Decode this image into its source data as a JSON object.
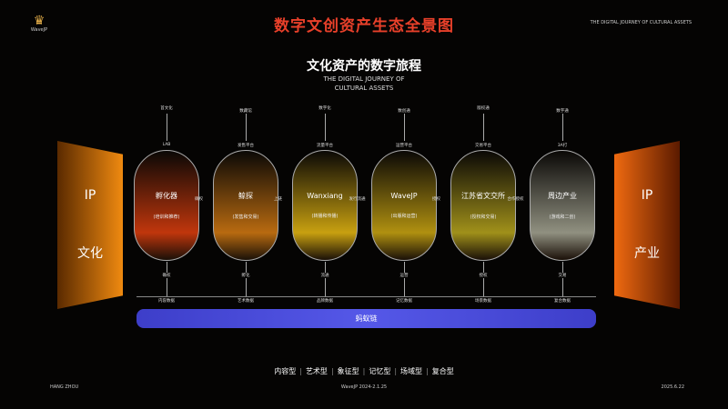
{
  "header": {
    "title": "数字文创资产生态全景图",
    "logo_text": "WaveJP",
    "top_right": "THE DIGITAL JOURNEY OF CULTURAL ASSETS"
  },
  "main": {
    "subtitle": "文化资产的数字旅程",
    "subtitle_en_1": "THE DIGITAL JOURNEY OF",
    "subtitle_en_2": "CULTURAL ASSETS"
  },
  "left_panel": {
    "line1": "IP",
    "line2": "文化"
  },
  "right_panel": {
    "line1": "IP",
    "line2": "产业"
  },
  "stages": [
    {
      "name": "孵化器",
      "sub": "(培训和推荐)",
      "top_label": "首文化",
      "top_node": "LAB",
      "bottom_label": "确权",
      "bottom_node": "内容数据",
      "color": "#c0360c"
    },
    {
      "name": "鲸探",
      "sub": "(发售和交易)",
      "top_label": "数藏馆",
      "top_node": "发售平台",
      "bottom_label": "孵化",
      "bottom_node": "艺术数据",
      "color": "#b86a10"
    },
    {
      "name": "Wanxiang",
      "sub": "(转播和传播)",
      "top_label": "数字化",
      "top_node": "流量平台",
      "bottom_label": "流通",
      "bottom_node": "品牌数据",
      "color": "#c8a010"
    },
    {
      "name": "WaveJP",
      "sub": "(出版和运营)",
      "top_label": "数创通",
      "top_node": "运营平台",
      "bottom_label": "运营",
      "bottom_node": "记忆数据",
      "color": "#b09010"
    },
    {
      "name": "江苏省文交所",
      "sub": "(授权和交易)",
      "top_label": "版权通",
      "top_node": "交易平台",
      "bottom_label": "授权",
      "bottom_node": "场景数据",
      "color": "#a0901a"
    },
    {
      "name": "周边产业",
      "sub": "(游戏和二创)",
      "top_label": "数字通",
      "top_node": "3A打",
      "bottom_label": "交易",
      "bottom_node": "复合数据",
      "color": "#909080"
    }
  ],
  "connectors": [
    "确权",
    "上链",
    "发行流通",
    "授权",
    "合作授权"
  ],
  "chain": {
    "label": "蚂蚁链"
  },
  "categories": [
    "内容型",
    "艺术型",
    "象征型",
    "记忆型",
    "场域型",
    "复合型"
  ],
  "footer": {
    "left": "HANG ZHOU",
    "center": "WaveJP 2024-2.1.25",
    "right": "2025.6.22"
  }
}
